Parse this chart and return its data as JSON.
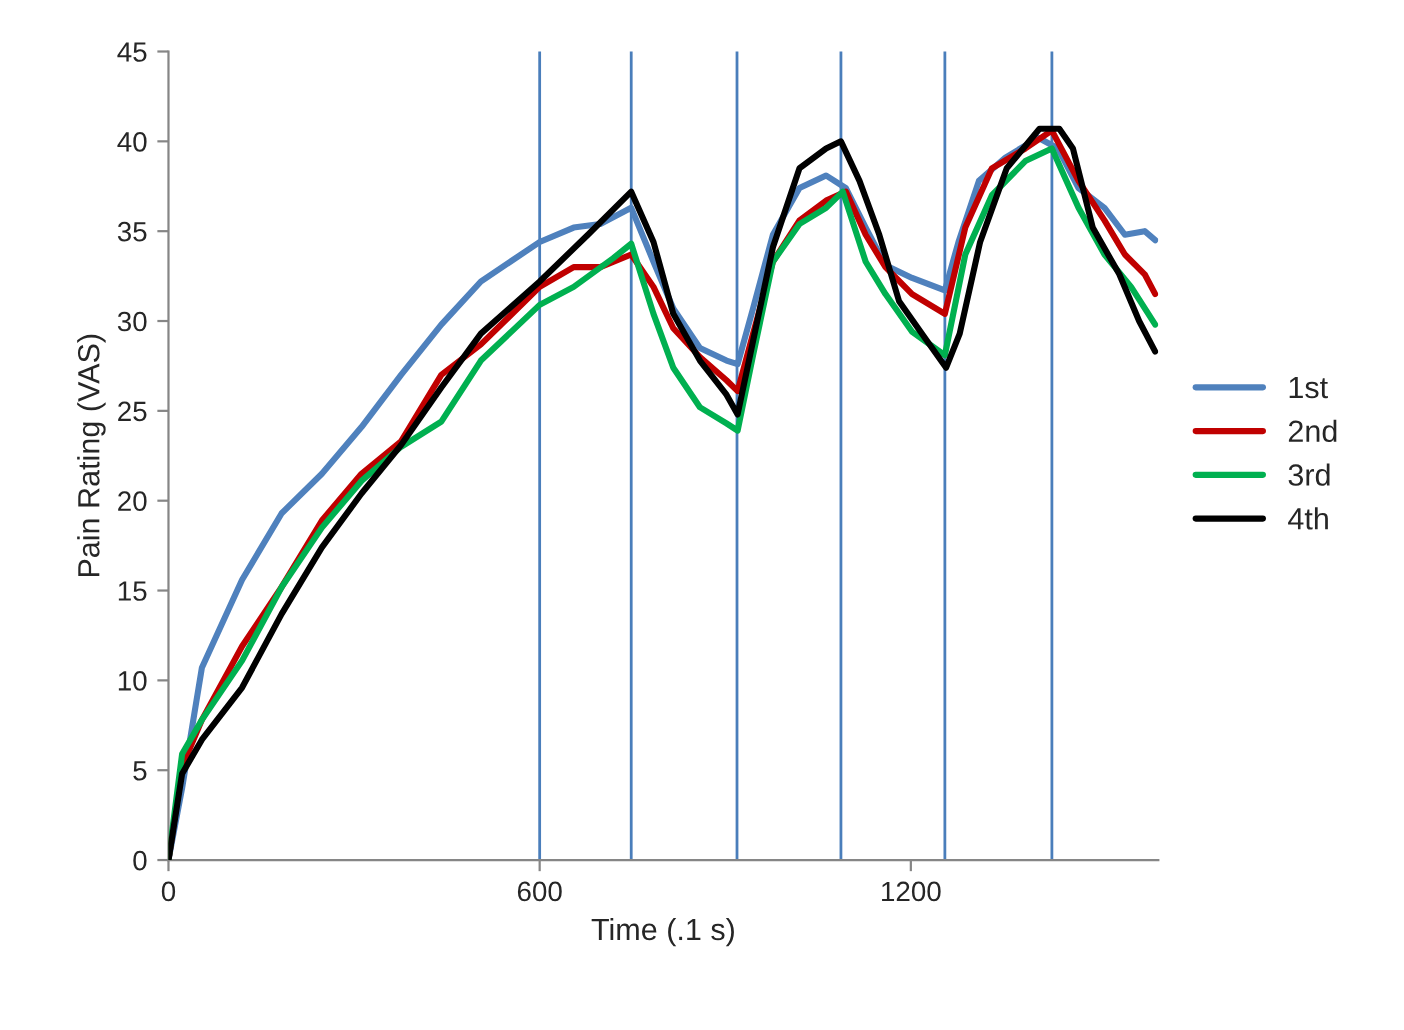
{
  "chart_data": {
    "type": "line",
    "xlabel": "Time (.1 s)",
    "ylabel": "Pain Rating (VAS)",
    "xlim": [
      0,
      1600
    ],
    "xticks": [
      0,
      600,
      1200
    ],
    "ylim": [
      0,
      45
    ],
    "yticks": [
      0,
      5,
      10,
      15,
      20,
      25,
      30,
      35,
      40,
      45
    ],
    "grid": false,
    "legend": "right",
    "marker": "none",
    "line_style": "solid",
    "series": [
      {
        "name": "1st",
        "color": "#4f81bd",
        "x": [
          0,
          22,
          54,
          119,
          183,
          248,
          312,
          376,
          441,
          505,
          600,
          655,
          698,
          748,
          784,
          816,
          859,
          902,
          920,
          945,
          977,
          1020,
          1063,
          1095,
          1127,
          1159,
          1202,
          1255,
          1277,
          1310,
          1353,
          1406,
          1438,
          1471,
          1513,
          1546,
          1578,
          1595
        ],
        "values": [
          0,
          4,
          10.7,
          15.6,
          19.3,
          21.5,
          24.1,
          27,
          29.8,
          32.2,
          34.4,
          35.2,
          35.4,
          36.3,
          33.3,
          30.7,
          28.5,
          27.8,
          27.6,
          30.7,
          34.8,
          37.4,
          38.1,
          37.4,
          35.2,
          33.1,
          32.4,
          31.7,
          34.4,
          37.8,
          39.1,
          40.2,
          39.6,
          37.4,
          36.3,
          34.8,
          35,
          34.5
        ]
      },
      {
        "name": "2nd",
        "color": "#c00000",
        "x": [
          0,
          22,
          54,
          119,
          183,
          248,
          312,
          376,
          441,
          505,
          600,
          655,
          698,
          748,
          784,
          816,
          859,
          902,
          920,
          945,
          977,
          1020,
          1063,
          1095,
          1127,
          1159,
          1202,
          1255,
          1288,
          1331,
          1385,
          1428,
          1471,
          1513,
          1546,
          1578,
          1595
        ],
        "values": [
          0,
          5.2,
          7.8,
          11.9,
          15.2,
          18.9,
          21.5,
          23.3,
          27,
          28.7,
          31.9,
          33,
          33,
          33.7,
          31.9,
          29.6,
          28,
          26.7,
          26.1,
          29.3,
          33.3,
          35.6,
          36.7,
          37.2,
          34.8,
          33,
          31.5,
          30.4,
          35.2,
          38.5,
          39.6,
          40.6,
          37.8,
          35.6,
          33.7,
          32.6,
          31.5
        ]
      },
      {
        "name": "3rd",
        "color": "#00b050",
        "x": [
          0,
          22,
          54,
          119,
          183,
          248,
          312,
          376,
          441,
          505,
          600,
          655,
          719,
          748,
          784,
          816,
          859,
          902,
          920,
          945,
          977,
          1020,
          1063,
          1090,
          1127,
          1159,
          1202,
          1255,
          1288,
          1331,
          1385,
          1428,
          1471,
          1513,
          1556,
          1595
        ],
        "values": [
          0,
          5.9,
          7.8,
          11.1,
          15.2,
          18.5,
          21.1,
          23,
          24.4,
          27.8,
          30.9,
          31.9,
          33.5,
          34.3,
          30.4,
          27.4,
          25.2,
          24.3,
          23.9,
          28.1,
          33.3,
          35.4,
          36.3,
          37.2,
          33.3,
          31.5,
          29.4,
          28.1,
          33.7,
          37,
          38.9,
          39.6,
          36.3,
          33.7,
          31.9,
          29.8
        ]
      },
      {
        "name": "4th",
        "color": "#000000",
        "x": [
          0,
          22,
          54,
          119,
          183,
          248,
          312,
          376,
          441,
          505,
          600,
          678,
          748,
          784,
          816,
          859,
          902,
          920,
          945,
          977,
          1020,
          1063,
          1087,
          1117,
          1149,
          1181,
          1226,
          1257,
          1279,
          1312,
          1355,
          1408,
          1440,
          1462,
          1494,
          1537,
          1569,
          1595
        ],
        "values": [
          0,
          4.8,
          6.7,
          9.6,
          13.7,
          17.4,
          20.4,
          23.1,
          26.3,
          29.3,
          32.2,
          34.8,
          37.2,
          34.4,
          30.4,
          27.8,
          25.9,
          24.8,
          28.9,
          34.1,
          38.5,
          39.6,
          40,
          37.8,
          34.8,
          31.1,
          28.9,
          27.4,
          29.3,
          34.4,
          38.5,
          40.7,
          40.7,
          39.6,
          35.2,
          32.6,
          30,
          28.3
        ]
      }
    ],
    "ref_lines": [
      {
        "axis": "x",
        "value": 600,
        "color": "#4a7ebb"
      },
      {
        "axis": "x",
        "value": 748,
        "color": "#4a7ebb"
      },
      {
        "axis": "x",
        "value": 919,
        "color": "#4a7ebb"
      },
      {
        "axis": "x",
        "value": 1087,
        "color": "#4a7ebb"
      },
      {
        "axis": "x",
        "value": 1255,
        "color": "#4a7ebb"
      },
      {
        "axis": "x",
        "value": 1428,
        "color": "#4a7ebb"
      }
    ]
  }
}
